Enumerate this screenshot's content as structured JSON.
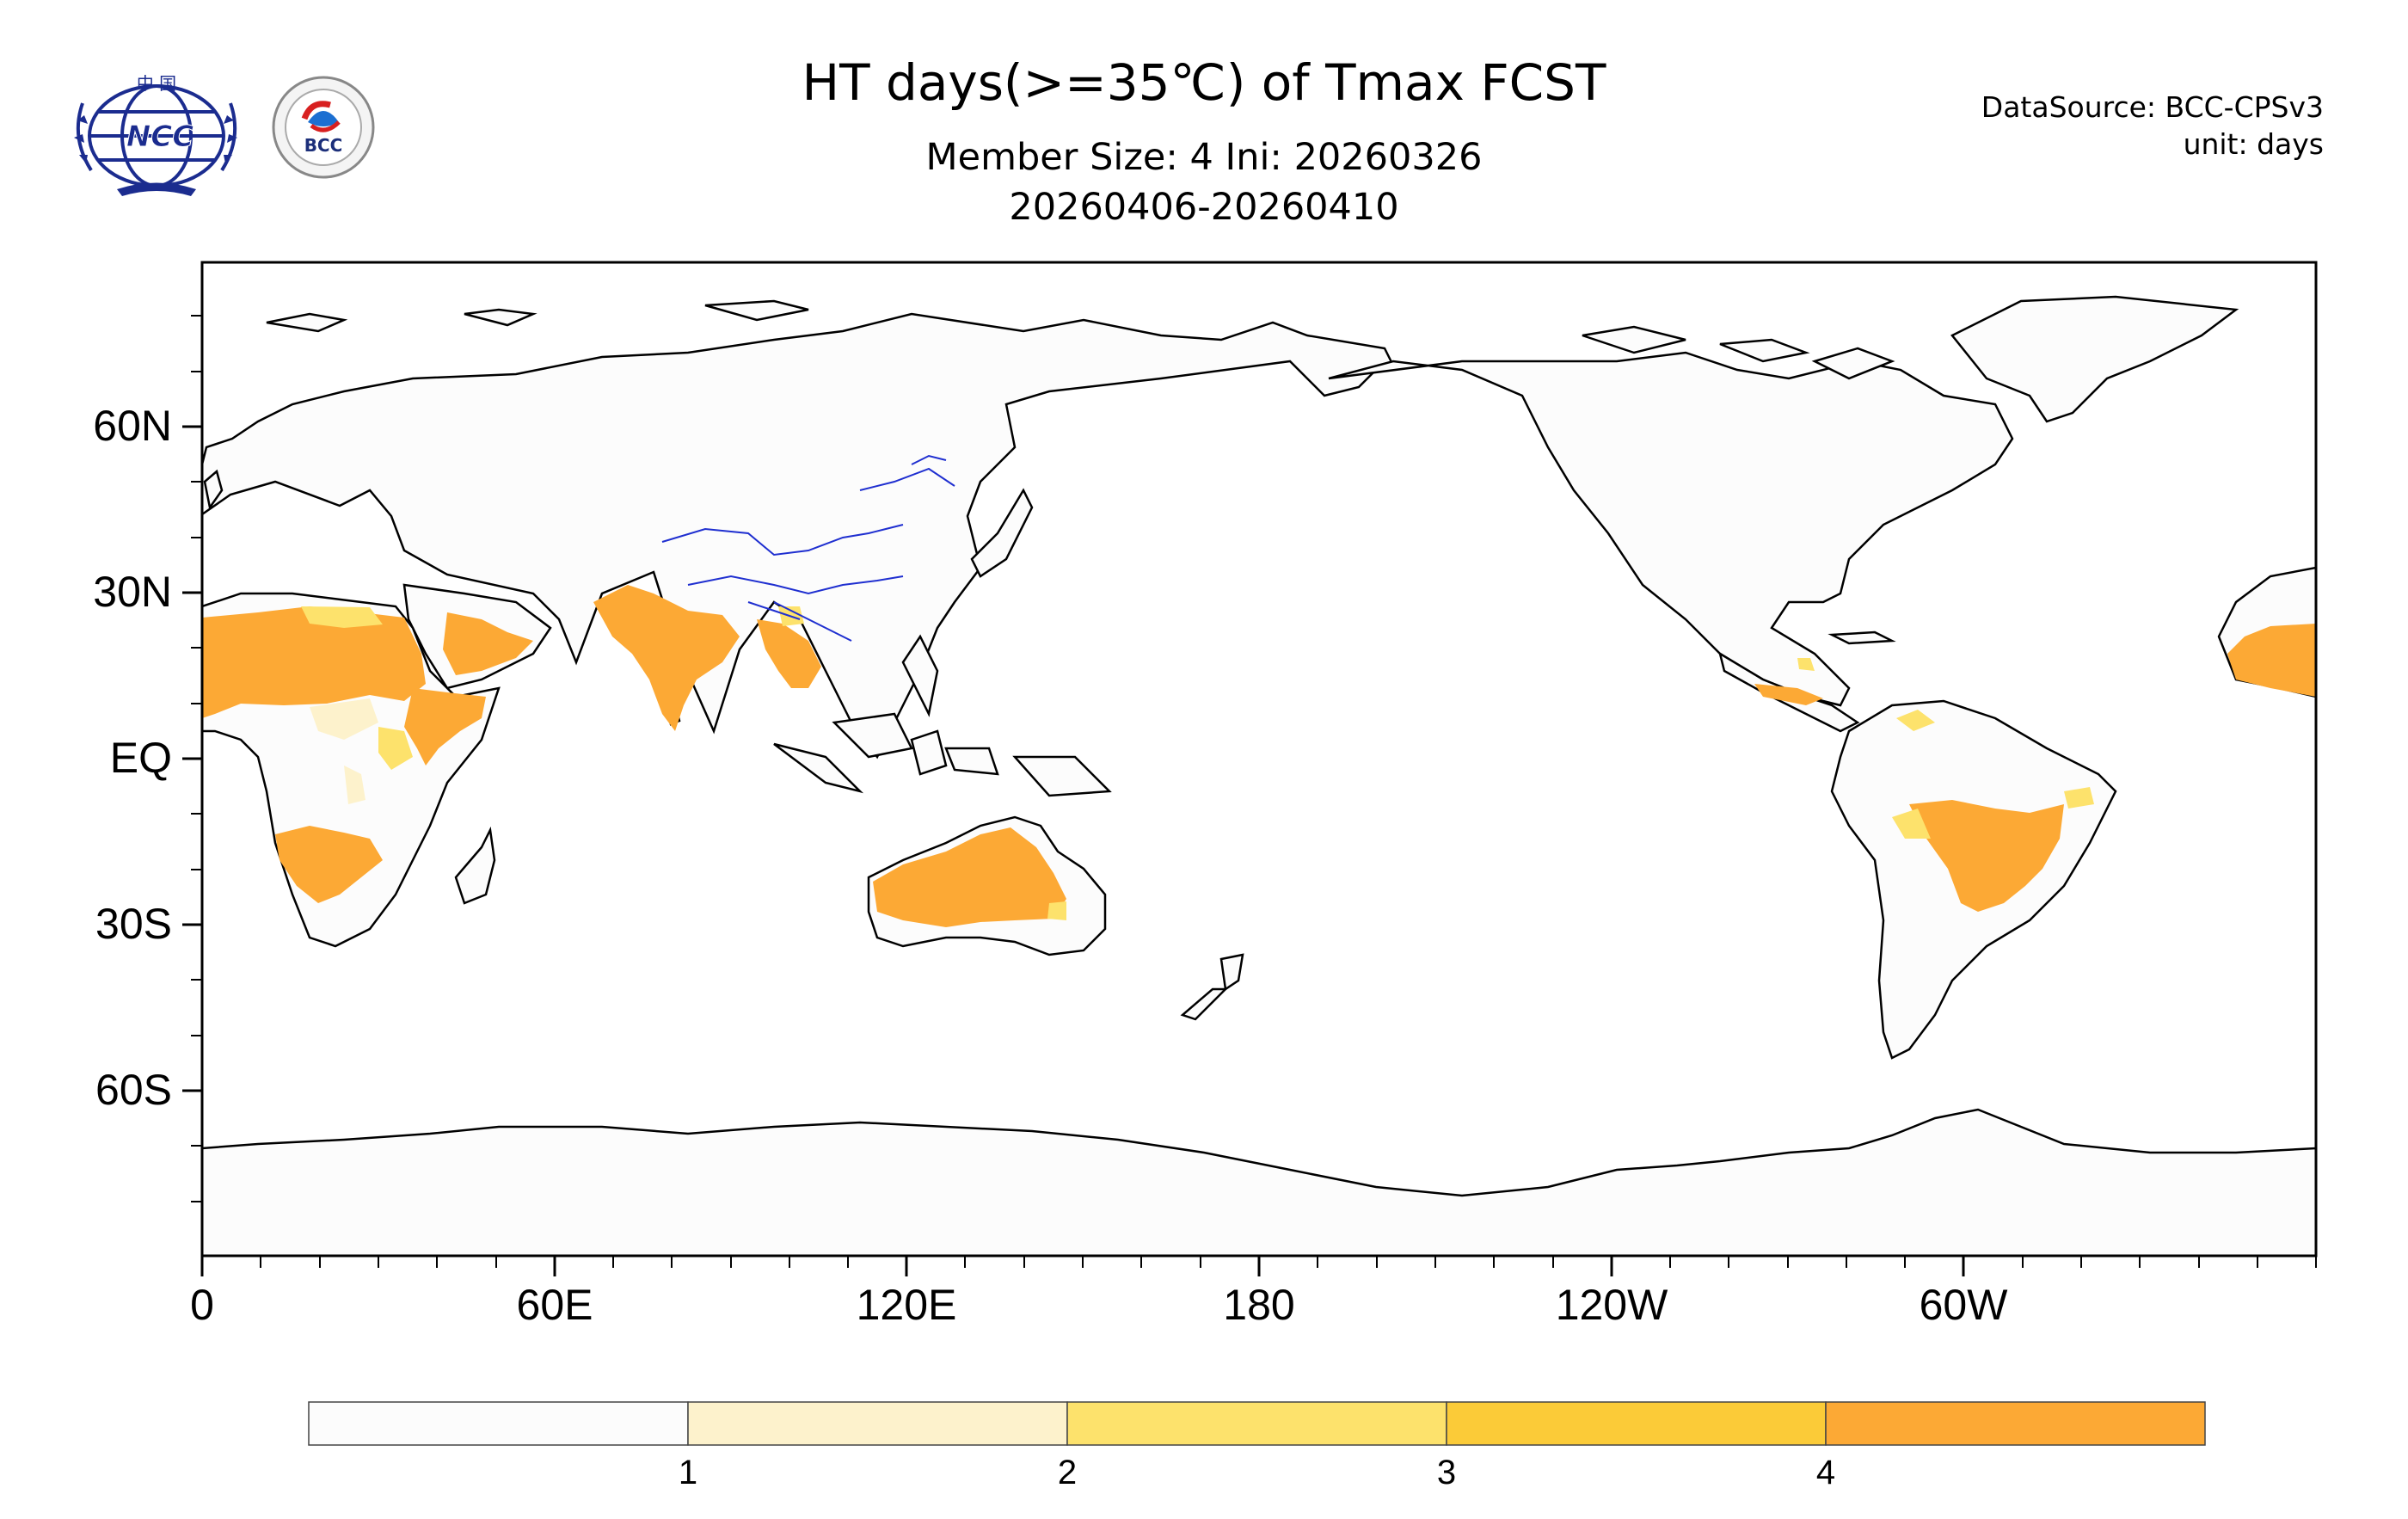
{
  "header": {
    "title": "HT days(>=35℃) of Tmax FCST",
    "subtitle_line1": "Member Size: 4  Ini: 20260326",
    "subtitle_line2": "20260406-20260410",
    "data_source": "DataSource: BCC-CPSv3",
    "unit": "unit: days"
  },
  "logos": {
    "ncc": {
      "text": "NCC",
      "top_text": "中 国"
    },
    "bcc": {
      "text": "BCC",
      "ring_text": "BEIJING CLIMATE CENTER"
    }
  },
  "map": {
    "projection": "cylindrical equidistant, centered on 180",
    "lat_labels": [
      "60N",
      "30N",
      "EQ",
      "30S",
      "60S"
    ],
    "lon_labels": [
      "0",
      "60E",
      "120E",
      "180",
      "120W",
      "60W"
    ]
  },
  "colorbar": {
    "labels": [
      "1",
      "2",
      "3",
      "4"
    ],
    "colors": [
      "#fcfcfc",
      "#fdf2cc",
      "#fde26c",
      "#fbcb38",
      "#fca935"
    ]
  },
  "colors": {
    "land": "#fcfcfc",
    "level4": "#fca935",
    "level3": "#fbcb38",
    "level2": "#fde26c",
    "level1": "#fdf2cc",
    "coast": "#000000",
    "rivers": "#1f2fd0"
  }
}
